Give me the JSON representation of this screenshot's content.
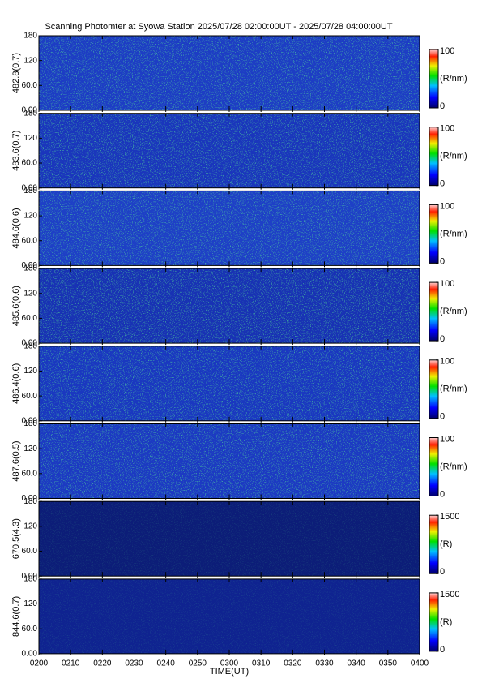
{
  "title": "Scanning Photomter at Syowa Station 2025/07/28 02:00:00UT - 2025/07/28 04:00:00UT",
  "xlabel": "TIME(UT)",
  "xticks": [
    "0200",
    "0210",
    "0220",
    "0230",
    "0240",
    "0250",
    "0300",
    "0310",
    "0320",
    "0330",
    "0340",
    "0350",
    "0400"
  ],
  "chart_data": [
    {
      "type": "heatmap",
      "ylabel": "482.8(0.7)",
      "color": "#1d3dc4",
      "ylim": [
        0,
        180
      ],
      "yticks": [
        {
          "value": 0,
          "label": "0.00"
        },
        {
          "value": 60,
          "label": "60.0"
        },
        120,
        180
      ],
      "colorbar": {
        "ticks": [
          0,
          100
        ],
        "label": "(R/nm)"
      }
    },
    {
      "type": "heatmap",
      "ylabel": "483.6(0.7)",
      "color": "#1a36bc",
      "ylim": [
        0,
        180
      ],
      "yticks": [
        {
          "value": 0,
          "label": "0.00"
        },
        {
          "value": 60,
          "label": "60.0"
        },
        120,
        180
      ],
      "colorbar": {
        "ticks": [
          0,
          100
        ],
        "label": "(R/nm)"
      }
    },
    {
      "type": "heatmap",
      "ylabel": "484.6(0.6)",
      "color": "#1e40c6",
      "ylim": [
        0,
        180
      ],
      "yticks": [
        {
          "value": 0,
          "label": "0.00"
        },
        {
          "value": 60,
          "label": "60.0"
        },
        120,
        180
      ],
      "colorbar": {
        "ticks": [
          0,
          100
        ],
        "label": "(R/nm)"
      }
    },
    {
      "type": "heatmap",
      "ylabel": "485.6(0.6)",
      "color": "#1832b4",
      "ylim": [
        0,
        180
      ],
      "yticks": [
        {
          "value": 0,
          "label": "0.00"
        },
        {
          "value": 60,
          "label": "60.0"
        },
        120,
        180
      ],
      "colorbar": {
        "ticks": [
          0,
          100
        ],
        "label": "(R/nm)"
      }
    },
    {
      "type": "heatmap",
      "ylabel": "486.4(0.6)",
      "color": "#1a38c0",
      "ylim": [
        0,
        180
      ],
      "yticks": [
        {
          "value": 0,
          "label": "0.00"
        },
        {
          "value": 60,
          "label": "60.0"
        },
        120,
        180
      ],
      "colorbar": {
        "ticks": [
          0,
          100
        ],
        "label": "(R/nm)"
      }
    },
    {
      "type": "heatmap",
      "ylabel": "487.6(0.5)",
      "color": "#1c3ac2",
      "ylim": [
        0,
        180
      ],
      "yticks": [
        {
          "value": 0,
          "label": "0.00"
        },
        {
          "value": 60,
          "label": "60.0"
        },
        120,
        180
      ],
      "colorbar": {
        "ticks": [
          0,
          100
        ],
        "label": "(R/nm)"
      }
    },
    {
      "type": "heatmap",
      "ylabel": "670.5(4.3)",
      "color": "#0c1d78",
      "ylim": [
        0,
        180
      ],
      "yticks": [
        {
          "value": 0,
          "label": "0.00"
        },
        {
          "value": 60,
          "label": "60.0"
        },
        120,
        180
      ],
      "colorbar": {
        "ticks": [
          0,
          1500
        ],
        "label": "(R)"
      }
    },
    {
      "type": "heatmap",
      "ylabel": "844.6(0.7)",
      "color": "#0f2390",
      "ylim": [
        0,
        180
      ],
      "yticks": [
        {
          "value": 0,
          "label": "0.00"
        },
        {
          "value": 60,
          "label": "60.0"
        },
        120,
        180
      ],
      "colorbar": {
        "ticks": [
          0,
          1500
        ],
        "label": "(R)"
      }
    }
  ]
}
